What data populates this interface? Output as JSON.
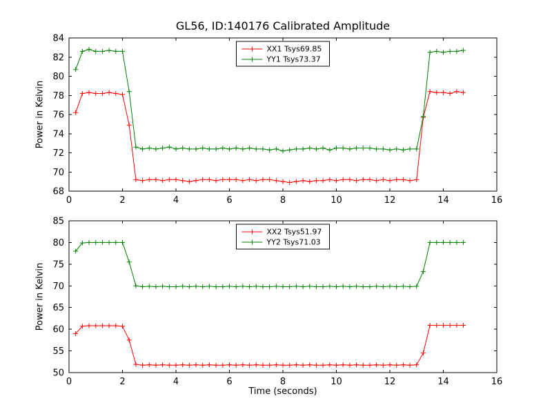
{
  "figure": {
    "title": "GL56, ID:140176 Calibrated Amplitude",
    "background_color": "#ffffff",
    "axis_color": "#000000"
  },
  "chart_data": [
    {
      "type": "line",
      "subplot": "top",
      "title": "GL56, ID:140176 Calibrated Amplitude",
      "xlabel": "",
      "ylabel": "Power in Kelvin",
      "xlim": [
        0,
        16
      ],
      "ylim": [
        68,
        84
      ],
      "xticks": [
        0,
        2,
        4,
        6,
        8,
        10,
        12,
        14,
        16
      ],
      "yticks": [
        68,
        70,
        72,
        74,
        76,
        78,
        80,
        82,
        84
      ],
      "grid": false,
      "marker": "+",
      "legend_position": "upper center",
      "x": [
        0.25,
        0.5,
        0.75,
        1,
        1.25,
        1.5,
        1.75,
        2,
        2.25,
        2.5,
        2.75,
        3,
        3.25,
        3.5,
        3.75,
        4,
        4.25,
        4.5,
        4.75,
        5,
        5.25,
        5.5,
        5.75,
        6,
        6.25,
        6.5,
        6.75,
        7,
        7.25,
        7.5,
        7.75,
        8,
        8.25,
        8.5,
        8.75,
        9,
        9.25,
        9.5,
        9.75,
        10,
        10.25,
        10.5,
        10.75,
        11,
        11.25,
        11.5,
        11.75,
        12,
        12.25,
        12.5,
        12.75,
        13,
        13.25,
        13.5,
        13.75,
        14,
        14.25,
        14.5,
        14.75
      ],
      "series": [
        {
          "name": "XX1 Tsys69.85",
          "color": "#ff0000",
          "values": [
            76.2,
            78.2,
            78.3,
            78.2,
            78.2,
            78.3,
            78.2,
            78.1,
            74.9,
            69.2,
            69.1,
            69.2,
            69.2,
            69.1,
            69.2,
            69.2,
            69.1,
            69.0,
            69.1,
            69.2,
            69.2,
            69.1,
            69.2,
            69.2,
            69.2,
            69.1,
            69.2,
            69.1,
            69.2,
            69.2,
            69.1,
            69.0,
            68.9,
            69.0,
            69.1,
            69.0,
            69.1,
            69.1,
            69.2,
            69.1,
            69.2,
            69.2,
            69.1,
            69.2,
            69.2,
            69.1,
            69.2,
            69.1,
            69.2,
            69.2,
            69.1,
            69.2,
            75.7,
            78.4,
            78.3,
            78.3,
            78.2,
            78.4,
            78.3
          ]
        },
        {
          "name": "YY1 Tsys73.37",
          "color": "#008000",
          "values": [
            80.7,
            82.6,
            82.8,
            82.6,
            82.6,
            82.7,
            82.6,
            82.6,
            78.4,
            72.6,
            72.4,
            72.5,
            72.4,
            72.5,
            72.6,
            72.4,
            72.5,
            72.4,
            72.4,
            72.5,
            72.4,
            72.4,
            72.5,
            72.4,
            72.5,
            72.4,
            72.5,
            72.4,
            72.4,
            72.3,
            72.4,
            72.2,
            72.3,
            72.4,
            72.4,
            72.5,
            72.4,
            72.5,
            72.3,
            72.5,
            72.5,
            72.4,
            72.5,
            72.5,
            72.5,
            72.4,
            72.4,
            72.3,
            72.4,
            72.3,
            72.4,
            72.4,
            75.8,
            82.5,
            82.6,
            82.5,
            82.6,
            82.6,
            82.7
          ]
        }
      ]
    },
    {
      "type": "line",
      "subplot": "bottom",
      "title": "",
      "xlabel": "Time (seconds)",
      "ylabel": "Power in Kelvin",
      "xlim": [
        0,
        16
      ],
      "ylim": [
        50,
        85
      ],
      "xticks": [
        0,
        2,
        4,
        6,
        8,
        10,
        12,
        14,
        16
      ],
      "yticks": [
        50,
        55,
        60,
        65,
        70,
        75,
        80,
        85
      ],
      "grid": false,
      "marker": "+",
      "legend_position": "upper center",
      "x": [
        0.25,
        0.5,
        0.75,
        1,
        1.25,
        1.5,
        1.75,
        2,
        2.25,
        2.5,
        2.75,
        3,
        3.25,
        3.5,
        3.75,
        4,
        4.25,
        4.5,
        4.75,
        5,
        5.25,
        5.5,
        5.75,
        6,
        6.25,
        6.5,
        6.75,
        7,
        7.25,
        7.5,
        7.75,
        8,
        8.25,
        8.5,
        8.75,
        9,
        9.25,
        9.5,
        9.75,
        10,
        10.25,
        10.5,
        10.75,
        11,
        11.25,
        11.5,
        11.75,
        12,
        12.25,
        12.5,
        12.75,
        13,
        13.25,
        13.5,
        13.75,
        14,
        14.25,
        14.5,
        14.75
      ],
      "series": [
        {
          "name": "XX2 Tsys51.97",
          "color": "#ff0000",
          "values": [
            59.0,
            60.7,
            60.8,
            60.8,
            60.8,
            60.8,
            60.8,
            60.7,
            57.5,
            51.9,
            51.7,
            51.8,
            51.7,
            51.8,
            51.7,
            51.7,
            51.8,
            51.7,
            51.8,
            51.7,
            51.8,
            51.7,
            51.7,
            51.8,
            51.7,
            51.8,
            51.7,
            51.8,
            51.7,
            51.7,
            51.8,
            51.7,
            51.7,
            51.8,
            51.7,
            51.8,
            51.7,
            51.7,
            51.8,
            51.7,
            51.8,
            51.7,
            51.8,
            51.7,
            51.7,
            51.8,
            51.7,
            51.8,
            51.7,
            51.8,
            51.7,
            51.8,
            54.5,
            60.9,
            60.9,
            60.9,
            60.9,
            60.9,
            60.9
          ]
        },
        {
          "name": "YY2 Tsys71.03",
          "color": "#008000",
          "values": [
            78.0,
            79.9,
            80.0,
            80.0,
            80.0,
            80.0,
            80.0,
            80.0,
            75.5,
            70.0,
            69.8,
            69.9,
            69.8,
            69.9,
            69.8,
            69.8,
            69.9,
            69.8,
            69.9,
            69.8,
            69.9,
            69.8,
            69.8,
            69.9,
            69.8,
            69.9,
            69.8,
            69.9,
            69.8,
            69.8,
            69.9,
            69.8,
            69.8,
            69.9,
            69.8,
            69.9,
            69.8,
            69.8,
            69.9,
            69.8,
            69.9,
            69.8,
            69.9,
            69.8,
            69.8,
            69.9,
            69.8,
            69.9,
            69.8,
            69.9,
            69.8,
            69.9,
            73.3,
            80.0,
            80.0,
            80.0,
            80.0,
            80.0,
            80.0
          ]
        }
      ]
    }
  ]
}
